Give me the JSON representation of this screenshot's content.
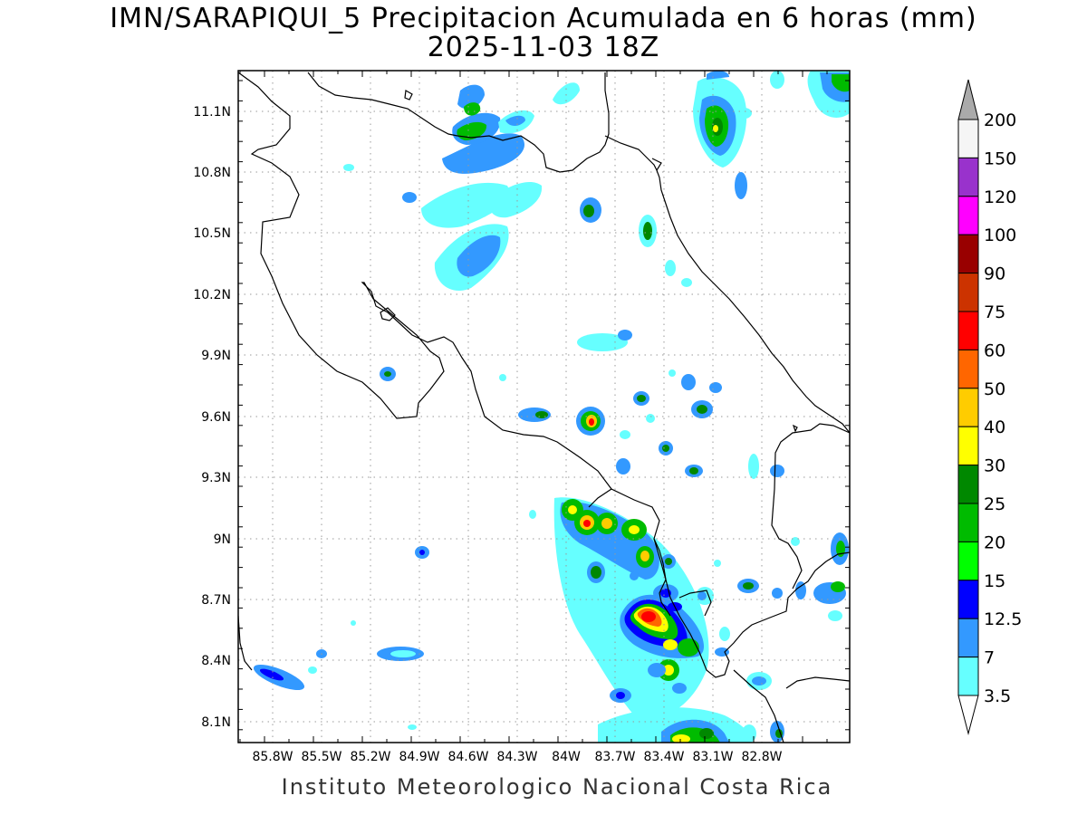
{
  "title": {
    "line1": "IMN/SARAPIQUI_5 Precipitacion Acumulada en 6 horas (mm)",
    "line2": "2025-11-03 18Z"
  },
  "footer": "Instituto Meteorologico Nacional Costa Rica",
  "axes": {
    "lon_labels": [
      "85.8W",
      "85.5W",
      "85.2W",
      "84.9W",
      "84.6W",
      "84.3W",
      "84W",
      "83.7W",
      "83.4W",
      "83.1W",
      "82.8W"
    ],
    "lat_labels": [
      "11.1N",
      "10.8N",
      "10.5N",
      "10.2N",
      "9.9N",
      "9.6N",
      "9.3N",
      "9N",
      "8.7N",
      "8.4N",
      "8.1N"
    ],
    "grid": "dotted"
  },
  "colorbar": {
    "labels": [
      "200",
      "150",
      "120",
      "100",
      "90",
      "75",
      "60",
      "50",
      "40",
      "30",
      "25",
      "20",
      "15",
      "12.5",
      "7",
      "3.5"
    ],
    "colors": [
      "#f5f5f5",
      "#9932cc",
      "#ff00ff",
      "#990000",
      "#cc3300",
      "#ff0000",
      "#ff6600",
      "#ffcc00",
      "#ffff00",
      "#008800",
      "#00bb00",
      "#00ff00",
      "#0000ff",
      "#3399ff",
      "#66ffff"
    ],
    "over_color": "#aaaaaa",
    "under_color": "#ffffff"
  }
}
